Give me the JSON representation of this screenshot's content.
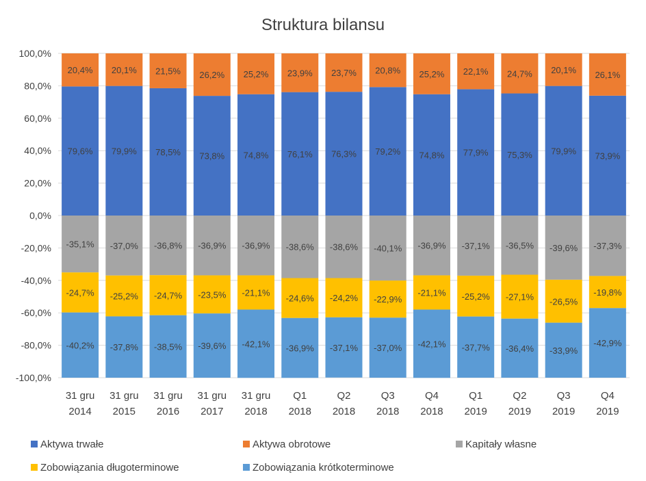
{
  "chart_data": {
    "type": "bar",
    "subtype": "stacked",
    "title": "Struktura bilansu",
    "xlabel": "",
    "ylabel": "",
    "ylim": [
      -100,
      100
    ],
    "yticks": [
      "100,0%",
      "80,0%",
      "60,0%",
      "40,0%",
      "20,0%",
      "0,0%",
      "-20,0%",
      "-40,0%",
      "-60,0%",
      "-80,0%",
      "-100,0%"
    ],
    "ytick_values": [
      100,
      80,
      60,
      40,
      20,
      0,
      -20,
      -40,
      -60,
      -80,
      -100
    ],
    "grid": true,
    "legend_position": "bottom",
    "categories": [
      [
        "31 gru",
        "2014"
      ],
      [
        "31 gru",
        "2015"
      ],
      [
        "31 gru",
        "2016"
      ],
      [
        "31 gru",
        "2017"
      ],
      [
        "31 gru",
        "2018"
      ],
      [
        "Q1",
        "2018"
      ],
      [
        "Q2",
        "2018"
      ],
      [
        "Q3",
        "2018"
      ],
      [
        "Q4",
        "2018"
      ],
      [
        "Q1",
        "2019"
      ],
      [
        "Q2",
        "2019"
      ],
      [
        "Q3",
        "2019"
      ],
      [
        "Q4",
        "2019"
      ]
    ],
    "series": [
      {
        "name": "Aktywa trwałe",
        "color": "#4472c4",
        "values": [
          79.6,
          79.9,
          78.5,
          73.8,
          74.8,
          76.1,
          76.3,
          79.2,
          74.8,
          77.9,
          75.3,
          79.9,
          73.9
        ],
        "labels": [
          "79,6%",
          "79,9%",
          "78,5%",
          "73,8%",
          "74,8%",
          "76,1%",
          "76,3%",
          "79,2%",
          "74,8%",
          "77,9%",
          "75,3%",
          "79,9%",
          "73,9%"
        ]
      },
      {
        "name": "Aktywa obrotowe",
        "color": "#ed7d31",
        "values": [
          20.4,
          20.1,
          21.5,
          26.2,
          25.2,
          23.9,
          23.7,
          20.8,
          25.2,
          22.1,
          24.7,
          20.1,
          26.1
        ],
        "labels": [
          "20,4%",
          "20,1%",
          "21,5%",
          "26,2%",
          "25,2%",
          "23,9%",
          "23,7%",
          "20,8%",
          "25,2%",
          "22,1%",
          "24,7%",
          "20,1%",
          "26,1%"
        ]
      },
      {
        "name": "Kapitały własne",
        "color": "#a5a5a5",
        "values": [
          -35.1,
          -37.0,
          -36.8,
          -36.9,
          -36.9,
          -38.6,
          -38.6,
          -40.1,
          -36.9,
          -37.1,
          -36.5,
          -39.6,
          -37.3
        ],
        "labels": [
          "-35,1%",
          "-37,0%",
          "-36,8%",
          "-36,9%",
          "-36,9%",
          "-38,6%",
          "-38,6%",
          "-40,1%",
          "-36,9%",
          "-37,1%",
          "-36,5%",
          "-39,6%",
          "-37,3%"
        ]
      },
      {
        "name": "Zobowiązania długoterminowe",
        "color": "#ffc000",
        "values": [
          -24.7,
          -25.2,
          -24.7,
          -23.5,
          -21.1,
          -24.6,
          -24.2,
          -22.9,
          -21.1,
          -25.2,
          -27.1,
          -26.5,
          -19.8
        ],
        "labels": [
          "-24,7%",
          "-25,2%",
          "-24,7%",
          "-23,5%",
          "-21,1%",
          "-24,6%",
          "-24,2%",
          "-22,9%",
          "-21,1%",
          "-25,2%",
          "-27,1%",
          "-26,5%",
          "-19,8%"
        ]
      },
      {
        "name": "Zobowiązania krótkoterminowe",
        "color": "#5b9bd5",
        "values": [
          -40.2,
          -37.8,
          -38.5,
          -39.6,
          -42.1,
          -36.9,
          -37.1,
          -37.0,
          -42.1,
          -37.7,
          -36.4,
          -33.9,
          -42.9
        ],
        "labels": [
          "-40,2%",
          "-37,8%",
          "-38,5%",
          "-39,6%",
          "-42,1%",
          "-36,9%",
          "-37,1%",
          "-37,0%",
          "-42,1%",
          "-37,7%",
          "-36,4%",
          "-33,9%",
          "-42,9%"
        ]
      }
    ]
  }
}
